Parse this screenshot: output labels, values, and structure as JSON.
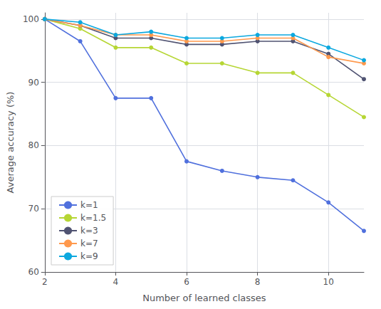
{
  "chart_data": {
    "type": "line",
    "x": [
      2,
      3,
      4,
      5,
      6,
      7,
      8,
      9,
      10,
      11
    ],
    "series": [
      {
        "name": "k=1",
        "values": [
          100,
          96.5,
          87.5,
          87.5,
          77.5,
          76.0,
          75.0,
          74.5,
          71.0,
          66.5
        ]
      },
      {
        "name": "k=1.5",
        "values": [
          100,
          98.5,
          95.5,
          95.5,
          93.0,
          93.0,
          91.5,
          91.5,
          88.0,
          84.5
        ]
      },
      {
        "name": "k=3",
        "values": [
          100,
          99.0,
          97.0,
          97.0,
          96.0,
          96.0,
          96.5,
          96.5,
          94.5,
          90.5
        ]
      },
      {
        "name": "k=7",
        "values": [
          100,
          99.0,
          97.5,
          97.5,
          96.5,
          96.5,
          97.0,
          97.0,
          94.0,
          93.0
        ]
      },
      {
        "name": "k=9",
        "values": [
          100,
          99.5,
          97.5,
          98.0,
          97.0,
          97.0,
          97.5,
          97.5,
          95.5,
          93.5
        ]
      }
    ],
    "xlabel": "Number of learned classes",
    "ylabel": "Average accuracy (%)",
    "xlim": [
      2,
      11
    ],
    "ylim": [
      60,
      101
    ],
    "xticks": [
      2,
      4,
      6,
      8,
      10
    ],
    "yticks": [
      60,
      70,
      80,
      90,
      100
    ],
    "grid": true,
    "legend": "lower left",
    "marker": "circle"
  }
}
